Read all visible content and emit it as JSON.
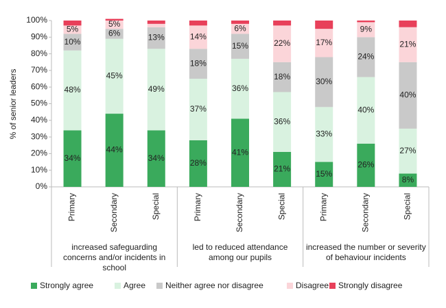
{
  "chart_data": {
    "type": "stacked_bar",
    "y_label": "% of senior leaders",
    "ylim": [
      0,
      100
    ],
    "yticks": [
      {
        "value": 0,
        "label": "0%"
      },
      {
        "value": 10,
        "label": "10%"
      },
      {
        "value": 20,
        "label": "20%"
      },
      {
        "value": 30,
        "label": "30%"
      },
      {
        "value": 40,
        "label": "40%"
      },
      {
        "value": 50,
        "label": "50%"
      },
      {
        "value": 60,
        "label": "60%"
      },
      {
        "value": 70,
        "label": "70%"
      },
      {
        "value": 80,
        "label": "80%"
      },
      {
        "value": 90,
        "label": "90%"
      },
      {
        "value": 100,
        "label": "100%"
      }
    ],
    "groups": [
      {
        "label": "increased safeguarding concerns and/or incidents in school",
        "categories": [
          "Primary",
          "Secondary",
          "Special"
        ]
      },
      {
        "label": "led to reduced attendance among our pupils",
        "categories": [
          "Primary",
          "Secondary",
          "Special"
        ]
      },
      {
        "label": "increased the number or severity of behaviour incidents",
        "categories": [
          "Primary",
          "Secondary",
          "Special"
        ]
      }
    ],
    "series": [
      {
        "name": "Strongly agree",
        "color": "#3aaa5c",
        "values": [
          34,
          44,
          34,
          28,
          41,
          21,
          15,
          26,
          8
        ],
        "value_labels": [
          "34%",
          "44%",
          "34%",
          "28%",
          "41%",
          "21%",
          "15%",
          "26%",
          "8%"
        ]
      },
      {
        "name": "Agree",
        "color": "#d9f2e0",
        "values": [
          48,
          45,
          49,
          37,
          36,
          36,
          33,
          40,
          27
        ],
        "value_labels": [
          "48%",
          "45%",
          "49%",
          "37%",
          "36%",
          "36%",
          "33%",
          "40%",
          "27%"
        ]
      },
      {
        "name": "Neither agree nor disagree",
        "color": "#c9c9c9",
        "values": [
          10,
          6,
          13,
          18,
          15,
          18,
          30,
          24,
          40
        ],
        "value_labels": [
          "10%",
          "6%",
          "13%",
          "18%",
          "15%",
          "18%",
          "30%",
          "24%",
          "40%"
        ]
      },
      {
        "name": "Disagree",
        "color": "#fbd5d9",
        "values": [
          5,
          5,
          2,
          14,
          6,
          22,
          17,
          9,
          21
        ],
        "value_labels": [
          "5%",
          "5%",
          null,
          "14%",
          "6%",
          "22%",
          "17%",
          "9%",
          "21%"
        ]
      },
      {
        "name": "Strongly disagree",
        "color": "#e8405a",
        "values": [
          3,
          1,
          2,
          3,
          2,
          3,
          5,
          1,
          4
        ],
        "value_labels": [
          null,
          null,
          null,
          null,
          null,
          null,
          null,
          null,
          null
        ]
      }
    ]
  }
}
